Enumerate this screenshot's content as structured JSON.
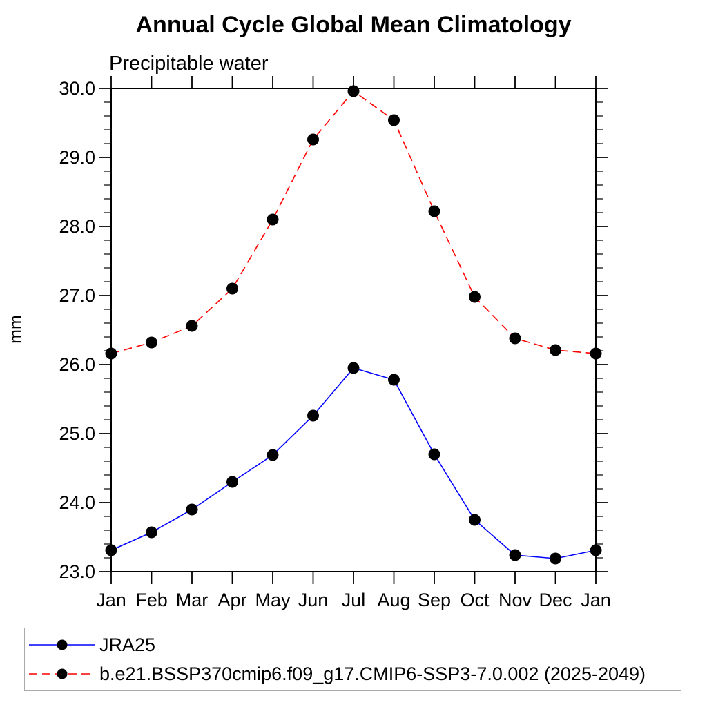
{
  "chart_data": {
    "type": "line",
    "title": "Annual Cycle Global Mean Climatology",
    "subtitle": "Precipitable water",
    "ylabel": "mm",
    "xlabel": "",
    "categories": [
      "Jan",
      "Feb",
      "Mar",
      "Apr",
      "May",
      "Jun",
      "Jul",
      "Aug",
      "Sep",
      "Oct",
      "Nov",
      "Dec",
      "Jan"
    ],
    "ylim": [
      23.0,
      30.0
    ],
    "ytick_labels": [
      "23.0",
      "24.0",
      "25.0",
      "26.0",
      "27.0",
      "28.0",
      "29.0",
      "30.0"
    ],
    "ytick_major_step": 1.0,
    "ytick_minor_step": 0.2,
    "grid": "off",
    "frame": "box-with-outward-ticks",
    "legend_position": "bottom-left-box",
    "series": [
      {
        "name": "JRA25",
        "color": "#0000ff",
        "line_style": "solid",
        "marker": "filled-black-circle",
        "values": [
          23.31,
          23.57,
          23.9,
          24.3,
          24.69,
          25.26,
          25.95,
          25.78,
          24.7,
          23.75,
          23.24,
          23.19,
          23.31
        ]
      },
      {
        "name": "b.e21.BSSP370cmip6.f09_g17.CMIP6-SSP3-7.0.002 (2025-2049)",
        "color": "#ff0000",
        "line_style": "dashed",
        "marker": "filled-black-circle",
        "values": [
          26.16,
          26.32,
          26.56,
          27.1,
          28.1,
          29.26,
          29.96,
          29.54,
          28.22,
          26.98,
          26.38,
          26.21,
          26.16
        ]
      }
    ]
  },
  "colors": {
    "axis": "#000000",
    "marker": "#000000",
    "series_blue": "#0000ff",
    "series_red": "#ff0000",
    "legend_border": "#aaaaaa",
    "background": "#ffffff"
  }
}
